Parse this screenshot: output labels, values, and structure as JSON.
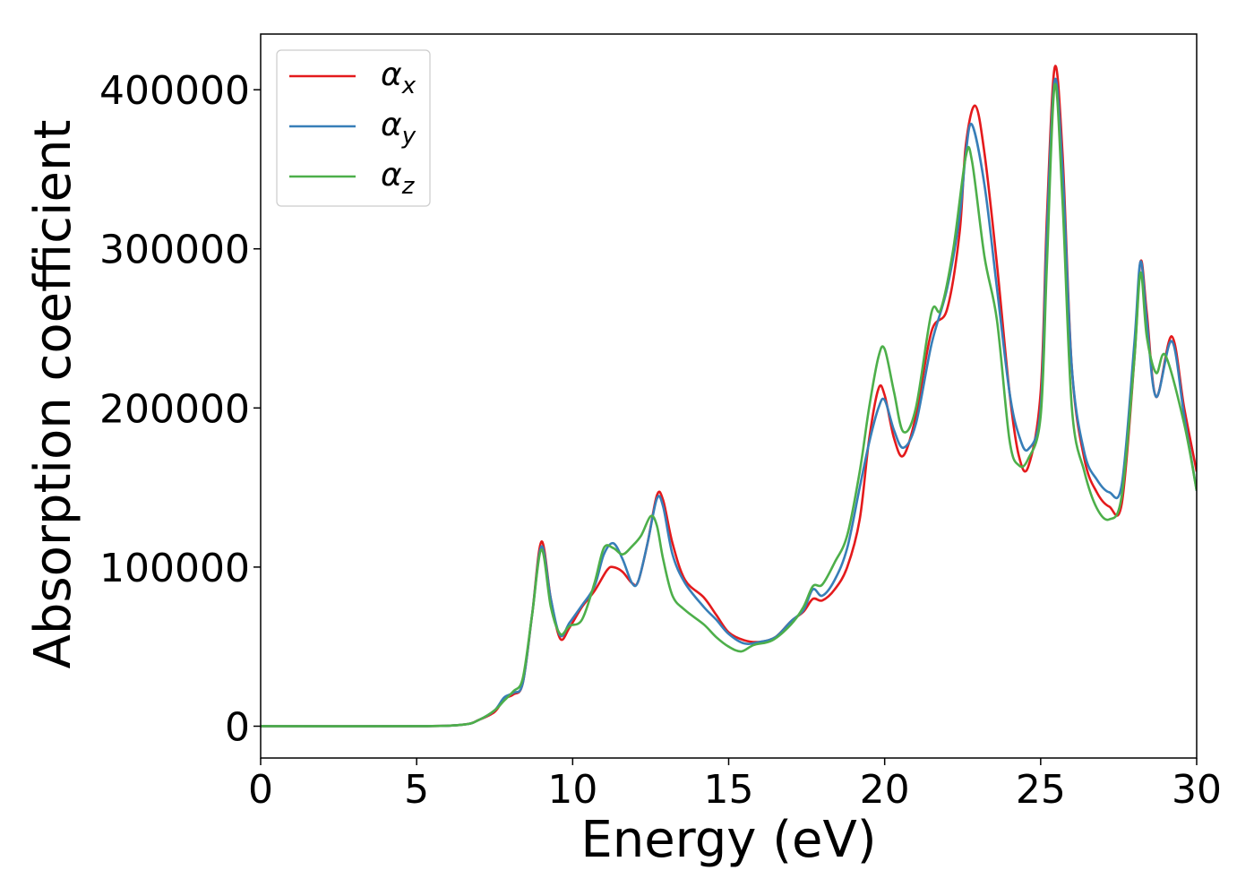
{
  "chart_data": {
    "type": "line",
    "title": "",
    "xlabel": "Energy (eV)",
    "ylabel": "Absorption coefficient",
    "xlim": [
      0,
      30
    ],
    "ylim": [
      -20000,
      435000
    ],
    "xticks": [
      0,
      5,
      10,
      15,
      20,
      25,
      30
    ],
    "yticks": [
      0,
      100000,
      200000,
      300000,
      400000
    ],
    "grid": false,
    "legend": {
      "placement": "top-left",
      "entries": [
        {
          "symbol": "α",
          "subscript": "x",
          "color": "#e41a1c"
        },
        {
          "symbol": "α",
          "subscript": "y",
          "color": "#377eb8"
        },
        {
          "symbol": "α",
          "subscript": "z",
          "color": "#4daf4a"
        }
      ]
    },
    "series": [
      {
        "name": "α_x",
        "color": "#e41a1c",
        "points": [
          [
            0,
            0
          ],
          [
            5,
            0
          ],
          [
            6.5,
            1000
          ],
          [
            7,
            4000
          ],
          [
            7.5,
            9000
          ],
          [
            7.8,
            17000
          ],
          [
            8.1,
            20000
          ],
          [
            8.4,
            27000
          ],
          [
            8.7,
            70000
          ],
          [
            9.0,
            116000
          ],
          [
            9.3,
            80000
          ],
          [
            9.6,
            55000
          ],
          [
            9.9,
            62000
          ],
          [
            10.3,
            75000
          ],
          [
            10.7,
            85000
          ],
          [
            11.1,
            98000
          ],
          [
            11.3,
            100000
          ],
          [
            11.6,
            97000
          ],
          [
            11.9,
            90000
          ],
          [
            12.1,
            91000
          ],
          [
            12.4,
            115000
          ],
          [
            12.7,
            145000
          ],
          [
            12.9,
            142000
          ],
          [
            13.2,
            115000
          ],
          [
            13.6,
            92000
          ],
          [
            14.2,
            81000
          ],
          [
            14.6,
            70000
          ],
          [
            15.0,
            59000
          ],
          [
            15.5,
            54000
          ],
          [
            16.0,
            53000
          ],
          [
            16.5,
            56000
          ],
          [
            17.0,
            66000
          ],
          [
            17.4,
            72000
          ],
          [
            17.7,
            80000
          ],
          [
            18.0,
            79000
          ],
          [
            18.4,
            86000
          ],
          [
            18.8,
            100000
          ],
          [
            19.2,
            130000
          ],
          [
            19.5,
            180000
          ],
          [
            19.8,
            212000
          ],
          [
            20.0,
            208000
          ],
          [
            20.3,
            181000
          ],
          [
            20.6,
            170000
          ],
          [
            21.0,
            195000
          ],
          [
            21.5,
            248000
          ],
          [
            22.0,
            262000
          ],
          [
            22.4,
            310000
          ],
          [
            22.6,
            365000
          ],
          [
            22.9,
            390000
          ],
          [
            23.2,
            360000
          ],
          [
            23.6,
            290000
          ],
          [
            24.0,
            210000
          ],
          [
            24.3,
            170000
          ],
          [
            24.6,
            163000
          ],
          [
            25.0,
            210000
          ],
          [
            25.2,
            320000
          ],
          [
            25.45,
            414000
          ],
          [
            25.7,
            360000
          ],
          [
            26.0,
            225000
          ],
          [
            26.4,
            168000
          ],
          [
            26.8,
            147000
          ],
          [
            27.2,
            138000
          ],
          [
            27.6,
            140000
          ],
          [
            28.0,
            230000
          ],
          [
            28.2,
            292000
          ],
          [
            28.4,
            260000
          ],
          [
            28.7,
            207000
          ],
          [
            29.2,
            245000
          ],
          [
            29.6,
            200000
          ],
          [
            30,
            160000
          ]
        ]
      },
      {
        "name": "α_y",
        "color": "#377eb8",
        "points": [
          [
            0,
            0
          ],
          [
            5,
            0
          ],
          [
            6.5,
            1000
          ],
          [
            7,
            4000
          ],
          [
            7.5,
            10000
          ],
          [
            7.8,
            18000
          ],
          [
            8.1,
            21000
          ],
          [
            8.4,
            27000
          ],
          [
            8.7,
            70000
          ],
          [
            9.0,
            113000
          ],
          [
            9.3,
            80000
          ],
          [
            9.6,
            57000
          ],
          [
            9.9,
            65000
          ],
          [
            10.3,
            76000
          ],
          [
            10.7,
            88000
          ],
          [
            11.0,
            108000
          ],
          [
            11.3,
            115000
          ],
          [
            11.6,
            105000
          ],
          [
            11.9,
            90000
          ],
          [
            12.1,
            91000
          ],
          [
            12.4,
            115000
          ],
          [
            12.7,
            143000
          ],
          [
            12.9,
            138000
          ],
          [
            13.2,
            108000
          ],
          [
            13.6,
            90000
          ],
          [
            14.2,
            75000
          ],
          [
            14.6,
            67000
          ],
          [
            15.0,
            58000
          ],
          [
            15.5,
            52000
          ],
          [
            16.0,
            53000
          ],
          [
            16.5,
            56000
          ],
          [
            17.0,
            66000
          ],
          [
            17.4,
            73000
          ],
          [
            17.7,
            86000
          ],
          [
            18.0,
            82000
          ],
          [
            18.4,
            92000
          ],
          [
            18.8,
            112000
          ],
          [
            19.2,
            150000
          ],
          [
            19.5,
            178000
          ],
          [
            19.8,
            200000
          ],
          [
            20.0,
            205000
          ],
          [
            20.3,
            186000
          ],
          [
            20.6,
            175000
          ],
          [
            21.0,
            190000
          ],
          [
            21.5,
            240000
          ],
          [
            22.0,
            275000
          ],
          [
            22.4,
            320000
          ],
          [
            22.6,
            360000
          ],
          [
            22.8,
            378000
          ],
          [
            23.2,
            340000
          ],
          [
            23.6,
            275000
          ],
          [
            24.0,
            210000
          ],
          [
            24.3,
            183000
          ],
          [
            24.6,
            174000
          ],
          [
            25.0,
            200000
          ],
          [
            25.2,
            310000
          ],
          [
            25.45,
            406000
          ],
          [
            25.7,
            350000
          ],
          [
            26.0,
            225000
          ],
          [
            26.4,
            172000
          ],
          [
            26.8,
            155000
          ],
          [
            27.2,
            147000
          ],
          [
            27.6,
            152000
          ],
          [
            28.0,
            240000
          ],
          [
            28.2,
            292000
          ],
          [
            28.4,
            255000
          ],
          [
            28.7,
            207000
          ],
          [
            29.2,
            242000
          ],
          [
            29.6,
            195000
          ],
          [
            30,
            148000
          ]
        ]
      },
      {
        "name": "α_z",
        "color": "#4daf4a",
        "points": [
          [
            0,
            0
          ],
          [
            5,
            0
          ],
          [
            6.5,
            1000
          ],
          [
            7,
            4000
          ],
          [
            7.5,
            10000
          ],
          [
            7.8,
            16000
          ],
          [
            8.1,
            22000
          ],
          [
            8.4,
            30000
          ],
          [
            8.7,
            70000
          ],
          [
            9.0,
            111000
          ],
          [
            9.3,
            75000
          ],
          [
            9.6,
            58000
          ],
          [
            9.9,
            63000
          ],
          [
            10.3,
            67000
          ],
          [
            10.7,
            90000
          ],
          [
            11.0,
            112000
          ],
          [
            11.3,
            112000
          ],
          [
            11.6,
            108000
          ],
          [
            11.9,
            113000
          ],
          [
            12.2,
            120000
          ],
          [
            12.5,
            132000
          ],
          [
            12.7,
            126000
          ],
          [
            12.9,
            105000
          ],
          [
            13.2,
            82000
          ],
          [
            13.6,
            73000
          ],
          [
            14.2,
            64000
          ],
          [
            14.6,
            56000
          ],
          [
            15.0,
            50000
          ],
          [
            15.4,
            47000
          ],
          [
            15.8,
            51000
          ],
          [
            16.4,
            54000
          ],
          [
            17.0,
            64000
          ],
          [
            17.4,
            75000
          ],
          [
            17.7,
            88000
          ],
          [
            18.0,
            89000
          ],
          [
            18.4,
            103000
          ],
          [
            18.8,
            120000
          ],
          [
            19.2,
            160000
          ],
          [
            19.5,
            200000
          ],
          [
            19.8,
            232000
          ],
          [
            20.0,
            237000
          ],
          [
            20.3,
            210000
          ],
          [
            20.6,
            185000
          ],
          [
            21.0,
            200000
          ],
          [
            21.5,
            260000
          ],
          [
            21.8,
            262000
          ],
          [
            22.2,
            300000
          ],
          [
            22.6,
            358000
          ],
          [
            22.8,
            355000
          ],
          [
            23.2,
            295000
          ],
          [
            23.6,
            255000
          ],
          [
            24.0,
            180000
          ],
          [
            24.3,
            164000
          ],
          [
            24.6,
            168000
          ],
          [
            25.0,
            195000
          ],
          [
            25.2,
            290000
          ],
          [
            25.45,
            403000
          ],
          [
            25.7,
            330000
          ],
          [
            26.0,
            200000
          ],
          [
            26.4,
            160000
          ],
          [
            26.8,
            137000
          ],
          [
            27.2,
            130000
          ],
          [
            27.6,
            145000
          ],
          [
            28.0,
            230000
          ],
          [
            28.2,
            285000
          ],
          [
            28.4,
            245000
          ],
          [
            28.7,
            222000
          ],
          [
            29.0,
            233000
          ],
          [
            29.6,
            190000
          ],
          [
            30,
            148000
          ]
        ]
      }
    ]
  }
}
